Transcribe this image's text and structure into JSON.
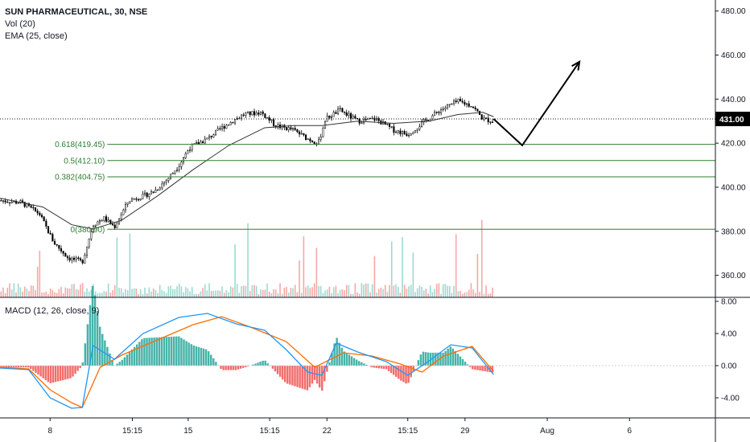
{
  "header": {
    "symbol": "SUN PHARMACEUTICAL, 30, NSE",
    "vol": "Vol (20)",
    "ema": "EMA (25, close)"
  },
  "macd_pane": {
    "label": "MACD (12, 26, close, 9)"
  },
  "colors": {
    "up": "#26a69a",
    "down": "#ef5350",
    "price_line": "#000000",
    "ema": "#333333",
    "fib": "#2e7d32",
    "macd": "#2196f3",
    "signal": "#ff6d00",
    "volume_up": "#9fd9d0",
    "volume_down": "#f4a9a7"
  },
  "chart_data": [
    {
      "type": "candlestick",
      "pane": "price",
      "ylim": [
        350,
        485
      ],
      "y_ticks": [
        "480.00",
        "460.00",
        "440.00",
        "420.00",
        "400.00",
        "380.00",
        "360.00"
      ],
      "x_tick_labels": [
        "8",
        "15:15",
        "15",
        "15:15",
        "22",
        "15:15",
        "29",
        "Aug",
        "6"
      ],
      "last_price": "431.00",
      "price_path": [
        [
          0,
          394
        ],
        [
          0.03,
          393
        ],
        [
          0.055,
          388
        ],
        [
          0.075,
          375
        ],
        [
          0.095,
          368
        ],
        [
          0.115,
          366
        ],
        [
          0.13,
          383
        ],
        [
          0.145,
          386
        ],
        [
          0.16,
          382
        ],
        [
          0.18,
          394
        ],
        [
          0.2,
          396
        ],
        [
          0.215,
          398
        ],
        [
          0.235,
          404
        ],
        [
          0.25,
          410
        ],
        [
          0.265,
          418
        ],
        [
          0.29,
          422
        ],
        [
          0.31,
          427
        ],
        [
          0.34,
          433
        ],
        [
          0.365,
          434
        ],
        [
          0.385,
          428
        ],
        [
          0.41,
          426
        ],
        [
          0.43,
          422
        ],
        [
          0.445,
          420
        ],
        [
          0.455,
          431
        ],
        [
          0.475,
          435
        ],
        [
          0.5,
          430
        ],
        [
          0.525,
          431
        ],
        [
          0.55,
          426
        ],
        [
          0.57,
          424
        ],
        [
          0.59,
          429
        ],
        [
          0.615,
          435
        ],
        [
          0.64,
          439
        ],
        [
          0.66,
          437
        ],
        [
          0.675,
          431
        ],
        [
          0.69,
          430
        ]
      ],
      "ema_path": [
        [
          0,
          395
        ],
        [
          0.06,
          391
        ],
        [
          0.1,
          383
        ],
        [
          0.13,
          381
        ],
        [
          0.17,
          385
        ],
        [
          0.22,
          396
        ],
        [
          0.27,
          408
        ],
        [
          0.32,
          419
        ],
        [
          0.37,
          427
        ],
        [
          0.41,
          428
        ],
        [
          0.45,
          428
        ],
        [
          0.5,
          430
        ],
        [
          0.55,
          429
        ],
        [
          0.6,
          430
        ],
        [
          0.64,
          433
        ],
        [
          0.675,
          434
        ],
        [
          0.69,
          432
        ]
      ],
      "fib_levels": [
        {
          "label": "0.618(419.45)",
          "value": 419.45
        },
        {
          "label": "0.5(412.10)",
          "value": 412.1
        },
        {
          "label": "0.382(404.75)",
          "value": 404.75
        },
        {
          "label": "0(380.90)",
          "value": 380.9
        }
      ],
      "projection_path": [
        [
          0.69,
          431
        ],
        [
          0.73,
          419
        ],
        [
          0.81,
          457
        ]
      ]
    },
    {
      "type": "line",
      "pane": "macd",
      "ylim": [
        -6.5,
        8.5
      ],
      "y_ticks": [
        "8.00",
        "4.00",
        "0.00",
        "-4.00"
      ],
      "series": [
        {
          "name": "MACD",
          "points": [
            [
              0,
              -0.3
            ],
            [
              0.04,
              -0.5
            ],
            [
              0.07,
              -4
            ],
            [
              0.1,
              -5.3
            ],
            [
              0.115,
              -5.2
            ],
            [
              0.13,
              2.5
            ],
            [
              0.16,
              0.8
            ],
            [
              0.2,
              4
            ],
            [
              0.25,
              6
            ],
            [
              0.29,
              6.5
            ],
            [
              0.33,
              5.2
            ],
            [
              0.37,
              4.4
            ],
            [
              0.4,
              2
            ],
            [
              0.43,
              -0.8
            ],
            [
              0.45,
              -1.2
            ],
            [
              0.47,
              2.8
            ],
            [
              0.5,
              1.7
            ],
            [
              0.54,
              0.5
            ],
            [
              0.57,
              -1.2
            ],
            [
              0.6,
              0.6
            ],
            [
              0.63,
              2.6
            ],
            [
              0.66,
              2.2
            ],
            [
              0.69,
              -1.1
            ]
          ]
        },
        {
          "name": "Signal",
          "points": [
            [
              0,
              -0.2
            ],
            [
              0.04,
              -0.4
            ],
            [
              0.07,
              -3
            ],
            [
              0.1,
              -4.6
            ],
            [
              0.115,
              -5.2
            ],
            [
              0.14,
              -0.2
            ],
            [
              0.17,
              1.3
            ],
            [
              0.22,
              3.2
            ],
            [
              0.27,
              5.1
            ],
            [
              0.31,
              6.1
            ],
            [
              0.35,
              4.8
            ],
            [
              0.4,
              3
            ],
            [
              0.44,
              -0.2
            ],
            [
              0.48,
              1.6
            ],
            [
              0.52,
              1.2
            ],
            [
              0.56,
              0.2
            ],
            [
              0.59,
              -0.8
            ],
            [
              0.62,
              1.2
            ],
            [
              0.66,
              2.4
            ],
            [
              0.69,
              -0.7
            ]
          ]
        }
      ]
    }
  ]
}
